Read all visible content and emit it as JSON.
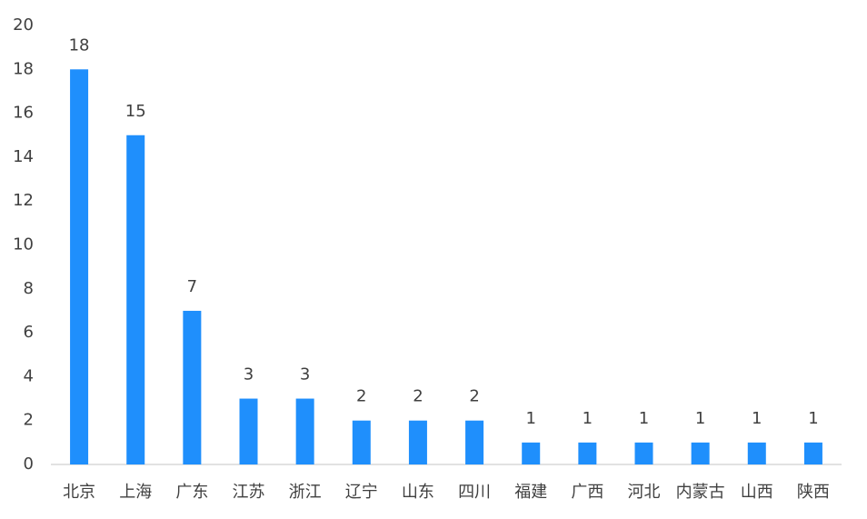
{
  "chart_data": {
    "type": "bar",
    "categories": [
      "北京",
      "上海",
      "广东",
      "江苏",
      "浙江",
      "辽宁",
      "山东",
      "四川",
      "福建",
      "广西",
      "河北",
      "内蒙古",
      "山西",
      "陕西"
    ],
    "values": [
      18,
      15,
      7,
      3,
      3,
      2,
      2,
      2,
      1,
      1,
      1,
      1,
      1,
      1
    ],
    "color": "#1f8ffc",
    "ylim": [
      0,
      20
    ],
    "yticks": [
      0,
      2,
      4,
      6,
      8,
      10,
      12,
      14,
      16,
      18,
      20
    ],
    "grid": false
  }
}
